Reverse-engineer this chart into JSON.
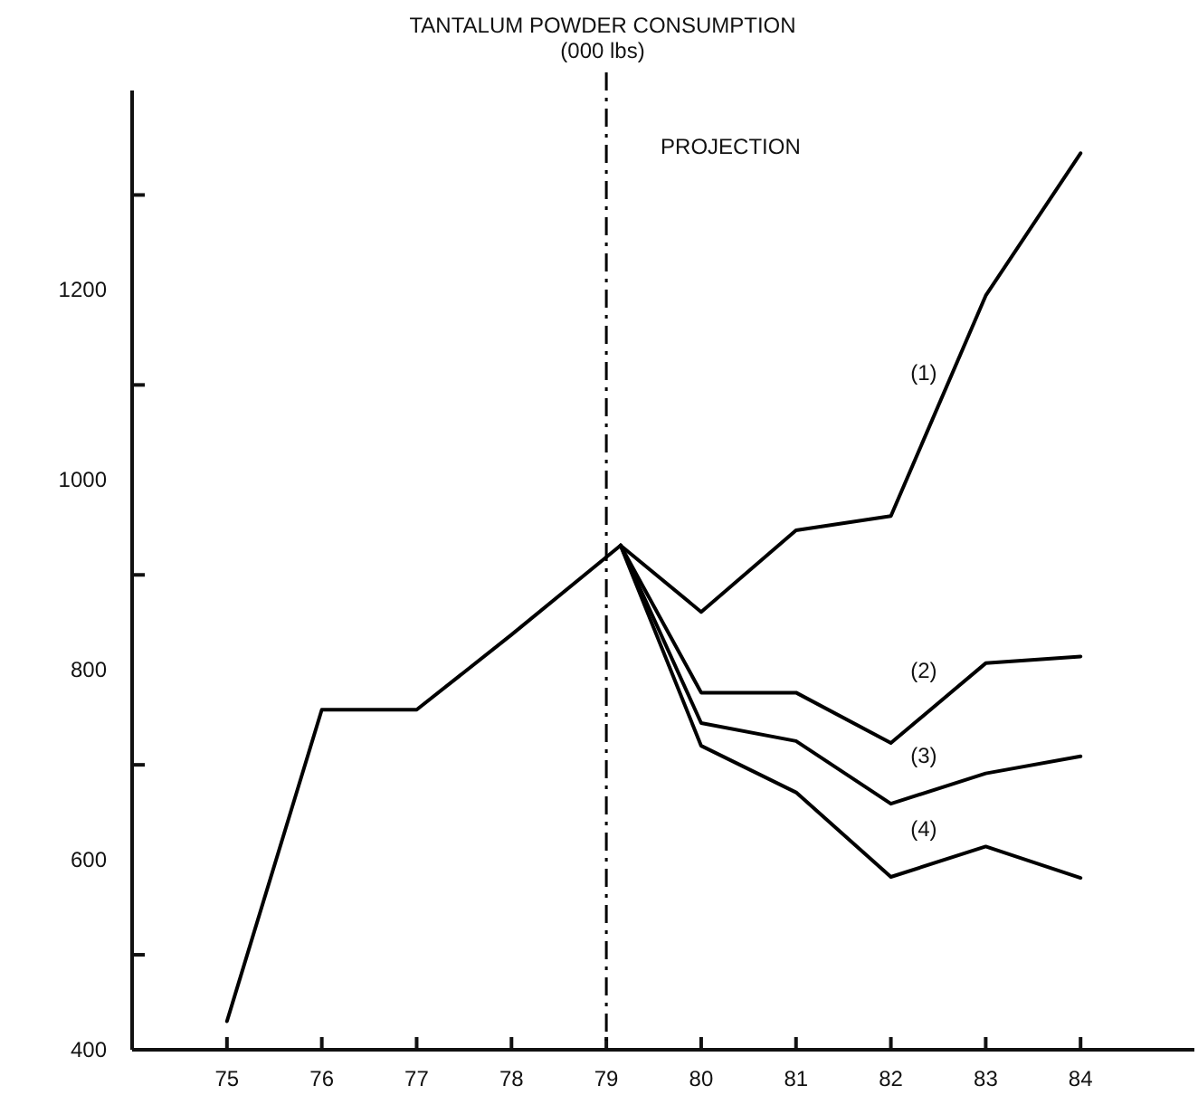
{
  "chart_data": {
    "type": "line",
    "title": "TANTALUM POWDER CONSUMPTION",
    "subtitle": "(000 lbs)",
    "xlim": [
      74,
      85.2
    ],
    "xticks": [
      75,
      76,
      77,
      78,
      79,
      80,
      81,
      82,
      83,
      84
    ],
    "ylim": [
      400,
      1410
    ],
    "yticks": [
      400,
      {
        "value": 500,
        "label": null
      },
      600,
      {
        "value": 700,
        "label": null
      },
      800,
      {
        "value": 900,
        "label": null
      },
      1000,
      {
        "value": 1100,
        "label": null
      },
      1200,
      {
        "value": 1300,
        "label": null
      }
    ],
    "grid": false,
    "legend": false,
    "marker": "none",
    "line_style": "solid",
    "ref_lines": [
      {
        "axis": "x",
        "value": 79,
        "label": "PROJECTION",
        "color": "#000000",
        "line_style": "dashed"
      }
    ],
    "series": [
      {
        "color": "#000000",
        "x": [
          75,
          76,
          77,
          78,
          79.15
        ],
        "values": [
          430,
          758,
          758,
          837,
          931
        ]
      },
      {
        "name": "(1)",
        "color": "#000000",
        "x": [
          79.15,
          80,
          81,
          82,
          83,
          84
        ],
        "values": [
          931,
          861,
          947,
          962,
          1194,
          1344
        ]
      },
      {
        "name": "(2)",
        "color": "#000000",
        "x": [
          79.15,
          80,
          81,
          82,
          83,
          84
        ],
        "values": [
          931,
          776,
          776,
          723,
          807,
          814
        ]
      },
      {
        "name": "(3)",
        "color": "#000000",
        "x": [
          79.15,
          80,
          81,
          82,
          83,
          84
        ],
        "values": [
          931,
          744,
          725,
          659,
          691,
          709
        ]
      },
      {
        "name": "(4)",
        "color": "#000000",
        "x": [
          79.15,
          80,
          81,
          82,
          83,
          84
        ],
        "values": [
          931,
          720,
          671,
          582,
          614,
          581
        ]
      }
    ]
  }
}
